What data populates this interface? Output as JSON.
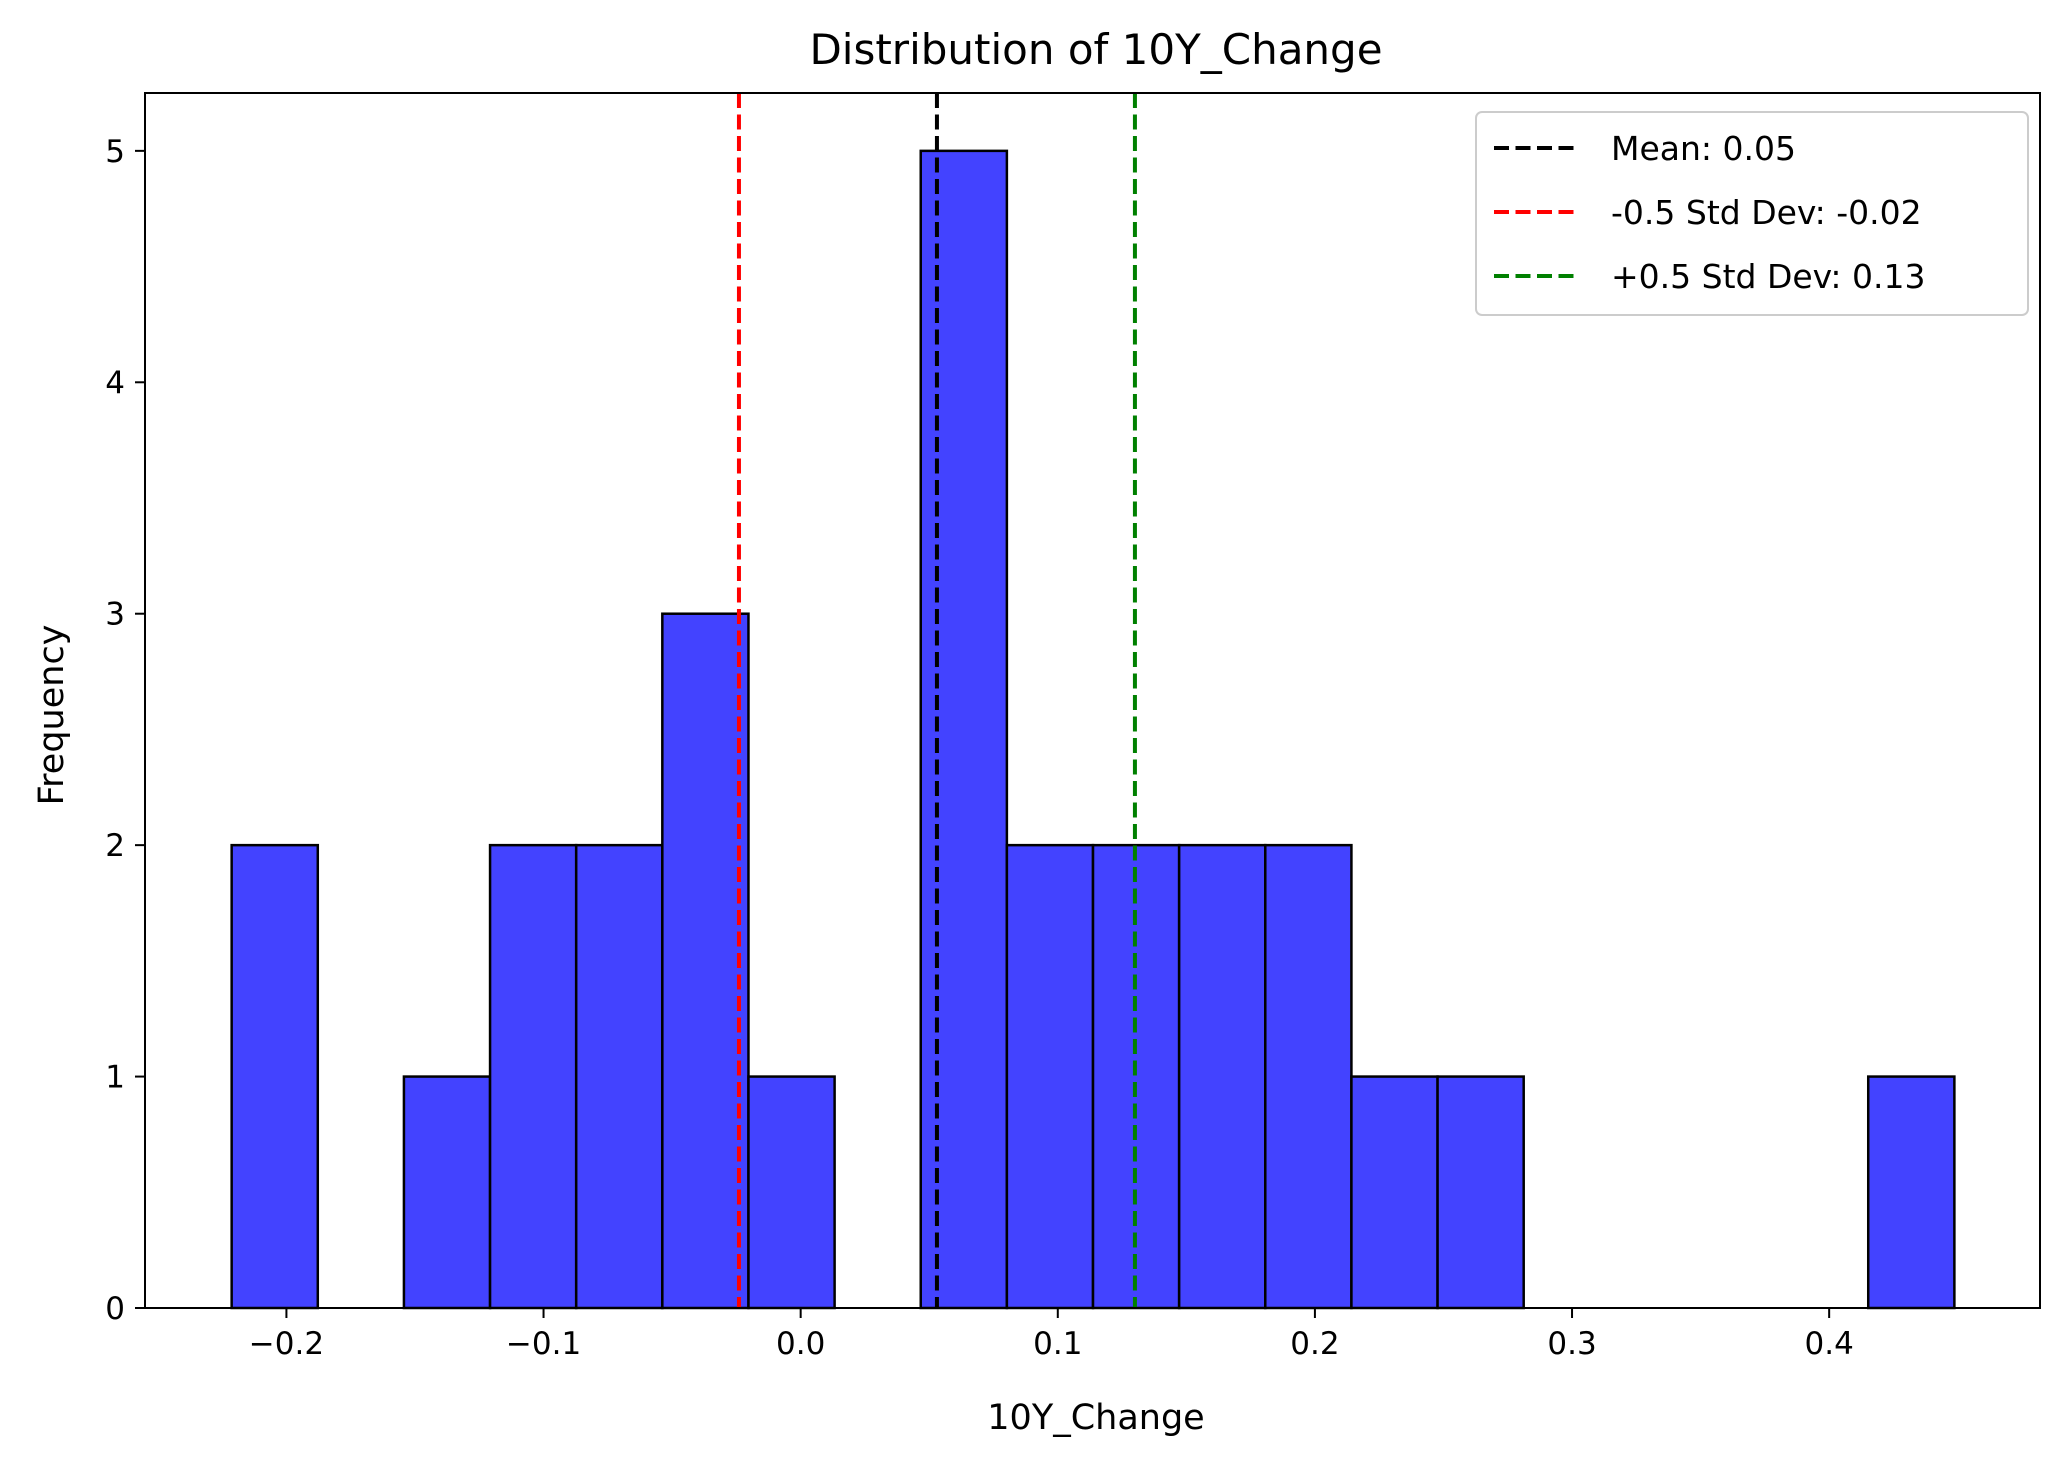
{
  "colors": {
    "bar_fill": "#4343ff",
    "bar_edge": "#000000",
    "mean_line": "#000000",
    "minus_line": "#ff0000",
    "plus_line": "#008000"
  },
  "chart_data": {
    "type": "bar",
    "title": "Distribution of 10Y_Change",
    "xlabel": "10Y_Change",
    "ylabel": "Frequency",
    "xlim": [
      -0.255,
      0.482
    ],
    "ylim": [
      0,
      5.25
    ],
    "xticks": [
      -0.2,
      -0.1,
      0.0,
      0.1,
      0.2,
      0.3,
      0.4
    ],
    "xtick_labels": [
      "−0.2",
      "−0.1",
      "0.0",
      "0.1",
      "0.2",
      "0.3",
      "0.4"
    ],
    "yticks": [
      0,
      1,
      2,
      3,
      4,
      5
    ],
    "ytick_labels": [
      "0",
      "1",
      "2",
      "3",
      "4",
      "5"
    ],
    "grid": false,
    "bin_edges": [
      -0.2213,
      -0.1878,
      -0.1543,
      -0.1208,
      -0.0873,
      -0.0538,
      -0.0203,
      0.0132,
      0.0467,
      0.0802,
      0.1137,
      0.1472,
      0.1807,
      0.2142,
      0.2477,
      0.2812,
      0.3147,
      0.3482,
      0.3817,
      0.4152,
      0.4487
    ],
    "values": [
      2,
      0,
      1,
      2,
      2,
      3,
      1,
      0,
      5,
      2,
      2,
      2,
      2,
      1,
      1,
      0,
      0,
      0,
      0,
      1
    ],
    "reference_lines": [
      {
        "name": "Mean: 0.05",
        "x": 0.053,
        "color": "#000000"
      },
      {
        "name": "-0.5 Std Dev: -0.02",
        "x": -0.024,
        "color": "#ff0000"
      },
      {
        "name": "+0.5 Std Dev: 0.13",
        "x": 0.13,
        "color": "#008000"
      }
    ],
    "legend_position": "upper right"
  }
}
